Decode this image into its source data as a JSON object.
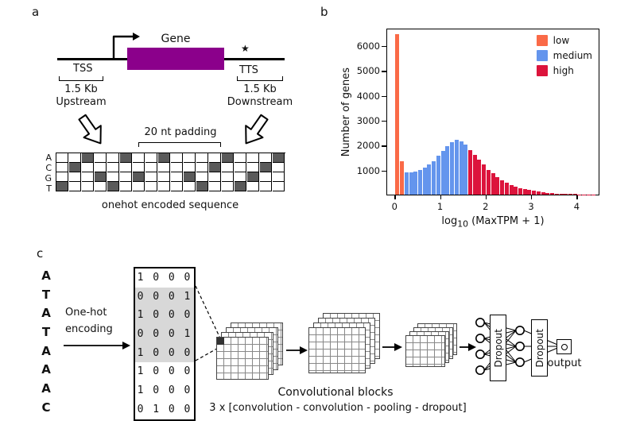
{
  "panels": {
    "a_label": "a",
    "b_label": "b",
    "c_label": "c"
  },
  "panel_a": {
    "gene_label": "Gene",
    "tss_label": "TSS",
    "tts_label": "TTS",
    "star": "★",
    "upstream_kb": "1.5 Kb",
    "upstream_label": "Upstream",
    "downstream_kb": "1.5 Kb",
    "downstream_label": "Downstream",
    "padding_label": "20 nt padding",
    "caption": "onehot encoded sequence",
    "gene_color": "#8B008B",
    "grid": {
      "row_labels": [
        "A",
        "C",
        "G",
        "T"
      ],
      "columns": 18,
      "filled_cell_color": "#5a5a5a",
      "pattern": [
        3,
        1,
        0,
        2,
        3,
        0,
        2,
        -1,
        0,
        -1,
        2,
        3,
        1,
        0,
        3,
        2,
        1,
        0
      ]
    }
  },
  "chart_data": {
    "type": "bar",
    "title": "",
    "ylabel": "Number of genes",
    "xlabel_prefix": "log",
    "xlabel_sub": "10",
    "xlabel_suffix": " (MaxTPM + 1)",
    "xlim": [
      -0.18,
      4.5
    ],
    "ylim": [
      0,
      6700
    ],
    "xticks": [
      0,
      1,
      2,
      3,
      4
    ],
    "yticks": [
      1000,
      2000,
      3000,
      4000,
      5000,
      6000
    ],
    "bin_width": 0.1,
    "legend": [
      {
        "label": "low",
        "color": "#fa6a47"
      },
      {
        "label": "medium",
        "color": "#6495ed"
      },
      {
        "label": "high",
        "color": "#dc143c"
      }
    ],
    "colors": {
      "low": "#fa6a47",
      "medium": "#6495ed",
      "high": "#dc143c"
    },
    "bins": [
      {
        "x": 0.05,
        "count": 6450,
        "group": "low"
      },
      {
        "x": 0.15,
        "count": 1350,
        "group": "low"
      },
      {
        "x": 0.25,
        "count": 900,
        "group": "medium"
      },
      {
        "x": 0.35,
        "count": 880,
        "group": "medium"
      },
      {
        "x": 0.45,
        "count": 920,
        "group": "medium"
      },
      {
        "x": 0.55,
        "count": 1000,
        "group": "medium"
      },
      {
        "x": 0.65,
        "count": 1080,
        "group": "medium"
      },
      {
        "x": 0.75,
        "count": 1200,
        "group": "medium"
      },
      {
        "x": 0.85,
        "count": 1350,
        "group": "medium"
      },
      {
        "x": 0.95,
        "count": 1550,
        "group": "medium"
      },
      {
        "x": 1.05,
        "count": 1750,
        "group": "medium"
      },
      {
        "x": 1.15,
        "count": 1950,
        "group": "medium"
      },
      {
        "x": 1.25,
        "count": 2100,
        "group": "medium"
      },
      {
        "x": 1.35,
        "count": 2200,
        "group": "medium"
      },
      {
        "x": 1.45,
        "count": 2150,
        "group": "medium"
      },
      {
        "x": 1.55,
        "count": 2000,
        "group": "medium"
      },
      {
        "x": 1.65,
        "count": 1800,
        "group": "high"
      },
      {
        "x": 1.75,
        "count": 1600,
        "group": "high"
      },
      {
        "x": 1.85,
        "count": 1400,
        "group": "high"
      },
      {
        "x": 1.95,
        "count": 1200,
        "group": "high"
      },
      {
        "x": 2.05,
        "count": 1000,
        "group": "high"
      },
      {
        "x": 2.15,
        "count": 850,
        "group": "high"
      },
      {
        "x": 2.25,
        "count": 700,
        "group": "high"
      },
      {
        "x": 2.35,
        "count": 580,
        "group": "high"
      },
      {
        "x": 2.45,
        "count": 480,
        "group": "high"
      },
      {
        "x": 2.55,
        "count": 400,
        "group": "high"
      },
      {
        "x": 2.65,
        "count": 330,
        "group": "high"
      },
      {
        "x": 2.75,
        "count": 270,
        "group": "high"
      },
      {
        "x": 2.85,
        "count": 220,
        "group": "high"
      },
      {
        "x": 2.95,
        "count": 180,
        "group": "high"
      },
      {
        "x": 3.05,
        "count": 150,
        "group": "high"
      },
      {
        "x": 3.15,
        "count": 120,
        "group": "high"
      },
      {
        "x": 3.25,
        "count": 95,
        "group": "high"
      },
      {
        "x": 3.35,
        "count": 75,
        "group": "high"
      },
      {
        "x": 3.45,
        "count": 60,
        "group": "high"
      },
      {
        "x": 3.55,
        "count": 48,
        "group": "high"
      },
      {
        "x": 3.65,
        "count": 38,
        "group": "high"
      },
      {
        "x": 3.75,
        "count": 30,
        "group": "high"
      },
      {
        "x": 3.85,
        "count": 24,
        "group": "high"
      },
      {
        "x": 3.95,
        "count": 18,
        "group": "high"
      },
      {
        "x": 4.05,
        "count": 14,
        "group": "high"
      },
      {
        "x": 4.15,
        "count": 10,
        "group": "high"
      },
      {
        "x": 4.25,
        "count": 8,
        "group": "high"
      },
      {
        "x": 4.35,
        "count": 6,
        "group": "high"
      }
    ]
  },
  "panel_c": {
    "sequence_letters": [
      "A",
      "T",
      "A",
      "T",
      "A",
      "A",
      "A",
      "C"
    ],
    "encoding_label_line1": "One-hot",
    "encoding_label_line2": "encoding",
    "matrix_rows": [
      "1 0 0 0",
      "0 0 0 1",
      "1 0 0 0",
      "0 0 0 1",
      "1 0 0 0",
      "1 0 0 0",
      "1 0 0 0",
      "0 1 0 0"
    ],
    "matrix_highlight_rows": [
      1,
      2,
      3,
      4
    ],
    "highlight_color": "#d8d8d8",
    "dropout1_label": "Dropout",
    "dropout2_label": "Dropout",
    "output_label": "output",
    "conv_caption_line1": "Convolutional blocks",
    "conv_caption_line2": "3 x [convolution - convolution - pooling - dropout]"
  }
}
